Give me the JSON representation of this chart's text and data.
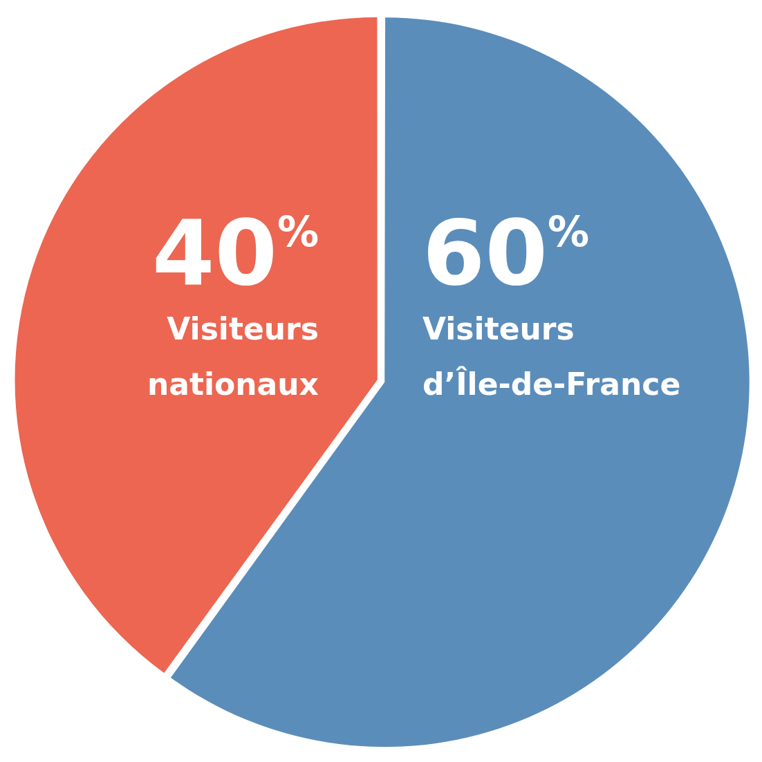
{
  "chart_data": {
    "type": "pie",
    "categories": [
      "Visiteurs d’Île-de-France",
      "Visiteurs nationaux"
    ],
    "values": [
      60,
      40
    ],
    "colors": [
      "#5b8dba",
      "#ec6652"
    ],
    "value_labels": [
      "60%",
      "40%"
    ],
    "legend": false
  }
}
